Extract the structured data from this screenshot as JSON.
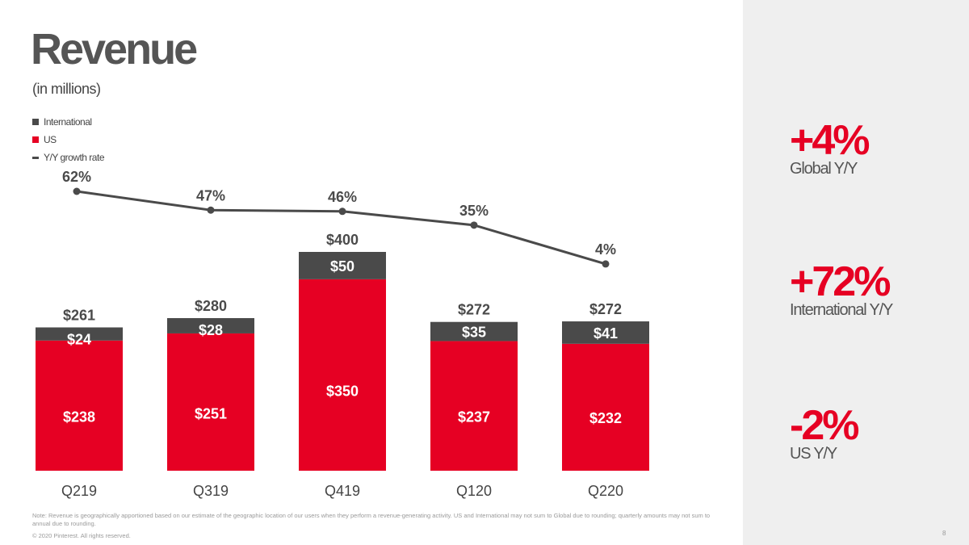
{
  "slide": {
    "title": "Revenue",
    "subtitle": "(in millions)",
    "footnote": "Note: Revenue is geographically apportioned based on our estimate of the geographic location of our users when they perform a revenue-generating activity. US and International may not sum to Global due to rounding; quarterly amounts may not sum to annual due to rounding.",
    "copyright": "© 2020 Pinterest. All rights reserved.",
    "page_number": "8"
  },
  "colors": {
    "us": "#e60023",
    "international": "#4a4a4a",
    "growth_line": "#4a4a4a",
    "panel": "#efefef",
    "accent": "#e60023"
  },
  "legend": [
    {
      "label": "International",
      "marker": "square",
      "color": "#4a4a4a"
    },
    {
      "label": "US",
      "marker": "square",
      "color": "#e60023"
    },
    {
      "label": "Y/Y growth rate",
      "marker": "line",
      "color": "#4a4a4a"
    }
  ],
  "stats": [
    {
      "value": "+4%",
      "label": "Global Y/Y"
    },
    {
      "value": "+72%",
      "label": "International Y/Y"
    },
    {
      "value": "-2%",
      "label": "US Y/Y"
    }
  ],
  "chart_data": {
    "type": "bar",
    "stacked": true,
    "categories": [
      "Q219",
      "Q319",
      "Q419",
      "Q120",
      "Q220"
    ],
    "series": [
      {
        "name": "US",
        "values": [
          238,
          251,
          350,
          237,
          232
        ],
        "labels": [
          "$238",
          "$251",
          "$350",
          "$237",
          "$232"
        ]
      },
      {
        "name": "International",
        "values": [
          24,
          28,
          50,
          35,
          41
        ],
        "labels": [
          "$24",
          "$28",
          "$50",
          "$35",
          "$41"
        ]
      }
    ],
    "totals": [
      261,
      280,
      400,
      272,
      272
    ],
    "total_labels": [
      "$261",
      "$280",
      "$400",
      "$272",
      "$272"
    ],
    "line_series": {
      "name": "Y/Y growth rate",
      "values": [
        62,
        47,
        46,
        35,
        4
      ],
      "labels": [
        "62%",
        "47%",
        "46%",
        "35%",
        "4%"
      ]
    },
    "ylim": [
      0,
      400
    ],
    "grid": false,
    "legend_position": "top-left"
  }
}
